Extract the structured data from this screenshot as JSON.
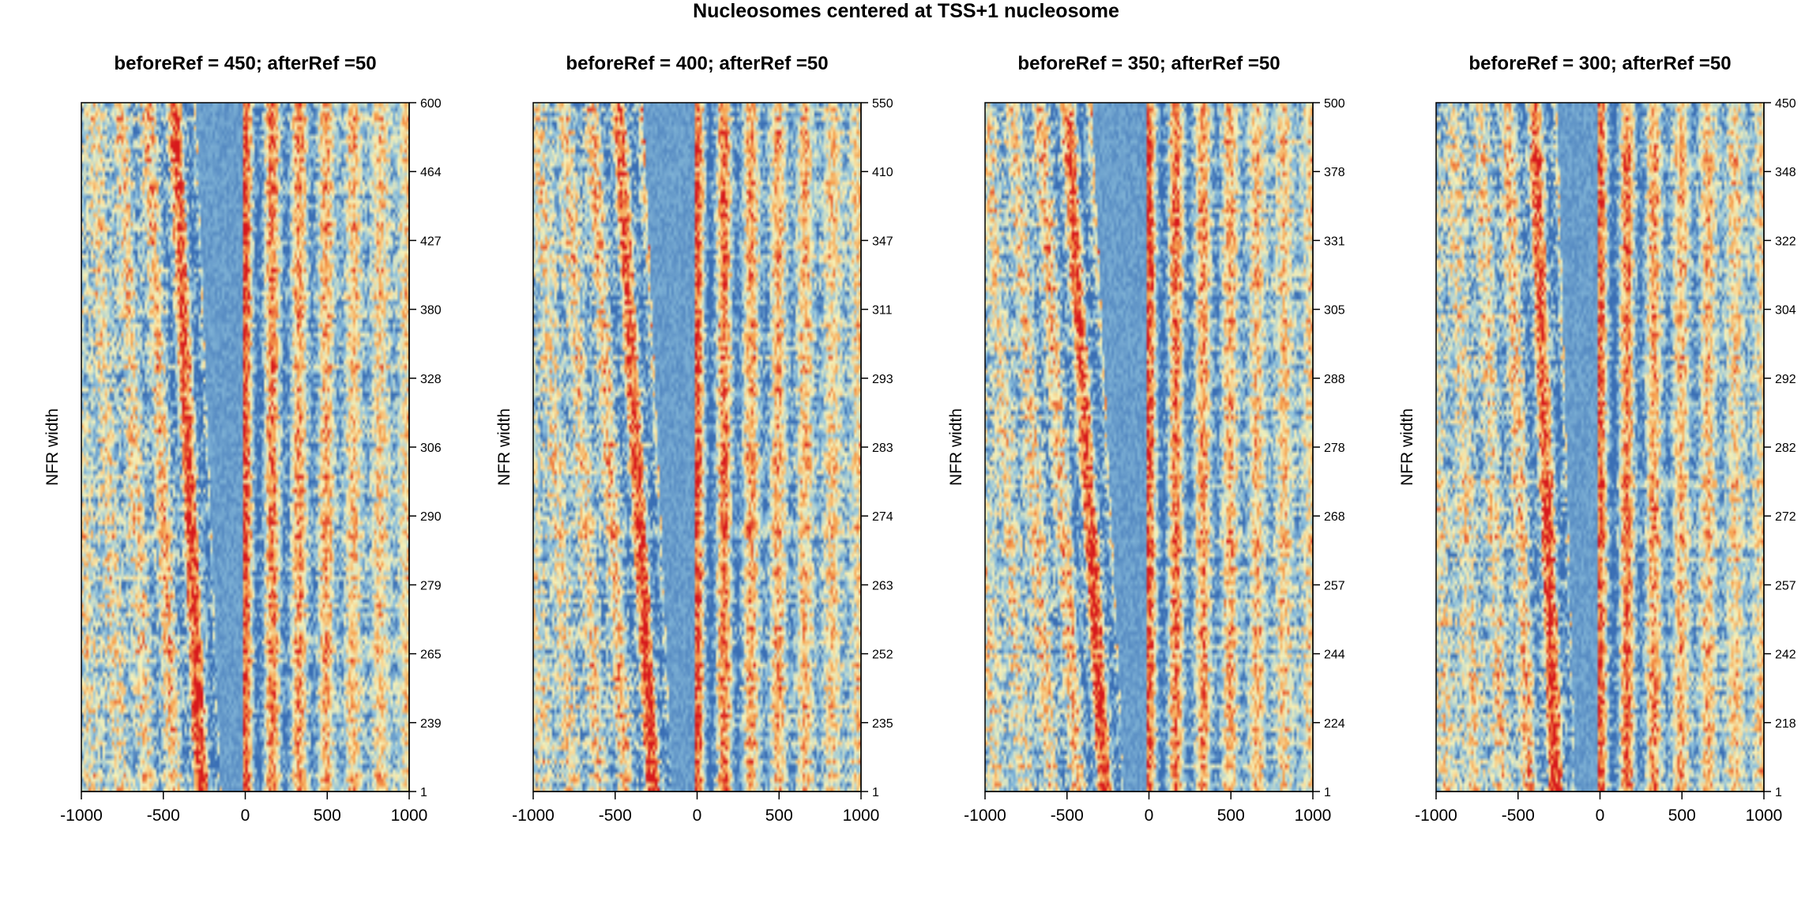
{
  "main_title": "Nucleosomes centered at TSS+1 nucleosome",
  "colors": {
    "low": "#3a6fb5",
    "mid_low": "#8fc2dd",
    "mid": "#f7f2b8",
    "mid_high": "#f6a04d",
    "high": "#d7191c",
    "axis": "#000000"
  },
  "chart_data": [
    {
      "type": "heatmap",
      "title": "beforeRef = 450; afterRef =50",
      "ylabel": "NFR width",
      "xlabel": "",
      "xlim": [
        -1000,
        1000
      ],
      "x_ticks": [
        -1000,
        -500,
        0,
        500,
        1000
      ],
      "y_tick_labels": [
        "1",
        "239",
        "265",
        "279",
        "290",
        "306",
        "328",
        "380",
        "427",
        "464",
        "600"
      ],
      "y_axis_side": "right",
      "depleted_region": {
        "x_top": [
          -300,
          0
        ],
        "x_bottom": [
          -150,
          0
        ],
        "upstream_peak_top": -430,
        "upstream_peak_bottom": -270
      }
    },
    {
      "type": "heatmap",
      "title": "beforeRef = 400; afterRef =50",
      "ylabel": "NFR width",
      "xlabel": "",
      "xlim": [
        -1000,
        1000
      ],
      "x_ticks": [
        -1000,
        -500,
        0,
        500,
        1000
      ],
      "y_tick_labels": [
        "1",
        "235",
        "252",
        "263",
        "274",
        "283",
        "293",
        "311",
        "347",
        "410",
        "550"
      ],
      "y_axis_side": "right",
      "depleted_region": {
        "x_top": [
          -330,
          0
        ],
        "x_bottom": [
          -150,
          0
        ],
        "upstream_peak_top": -480,
        "upstream_peak_bottom": -270
      }
    },
    {
      "type": "heatmap",
      "title": "beforeRef = 350; afterRef =50",
      "ylabel": "NFR width",
      "xlabel": "",
      "xlim": [
        -1000,
        1000
      ],
      "x_ticks": [
        -1000,
        -500,
        0,
        500,
        1000
      ],
      "y_tick_labels": [
        "1",
        "224",
        "244",
        "257",
        "268",
        "278",
        "288",
        "305",
        "331",
        "378",
        "500"
      ],
      "y_axis_side": "right",
      "depleted_region": {
        "x_top": [
          -350,
          0
        ],
        "x_bottom": [
          -150,
          0
        ],
        "upstream_peak_top": -500,
        "upstream_peak_bottom": -270
      }
    },
    {
      "type": "heatmap",
      "title": "beforeRef = 300; afterRef =50",
      "ylabel": "NFR width",
      "xlabel": "",
      "xlim": [
        -1000,
        1000
      ],
      "x_ticks": [
        -1000,
        -500,
        0,
        500,
        1000
      ],
      "y_tick_labels": [
        "1",
        "218",
        "242",
        "257",
        "272",
        "282",
        "292",
        "304",
        "322",
        "348",
        "450"
      ],
      "y_axis_side": "right",
      "depleted_region": {
        "x_top": [
          -260,
          0
        ],
        "x_bottom": [
          -150,
          0
        ],
        "upstream_peak_top": -400,
        "upstream_peak_bottom": -270
      }
    }
  ]
}
